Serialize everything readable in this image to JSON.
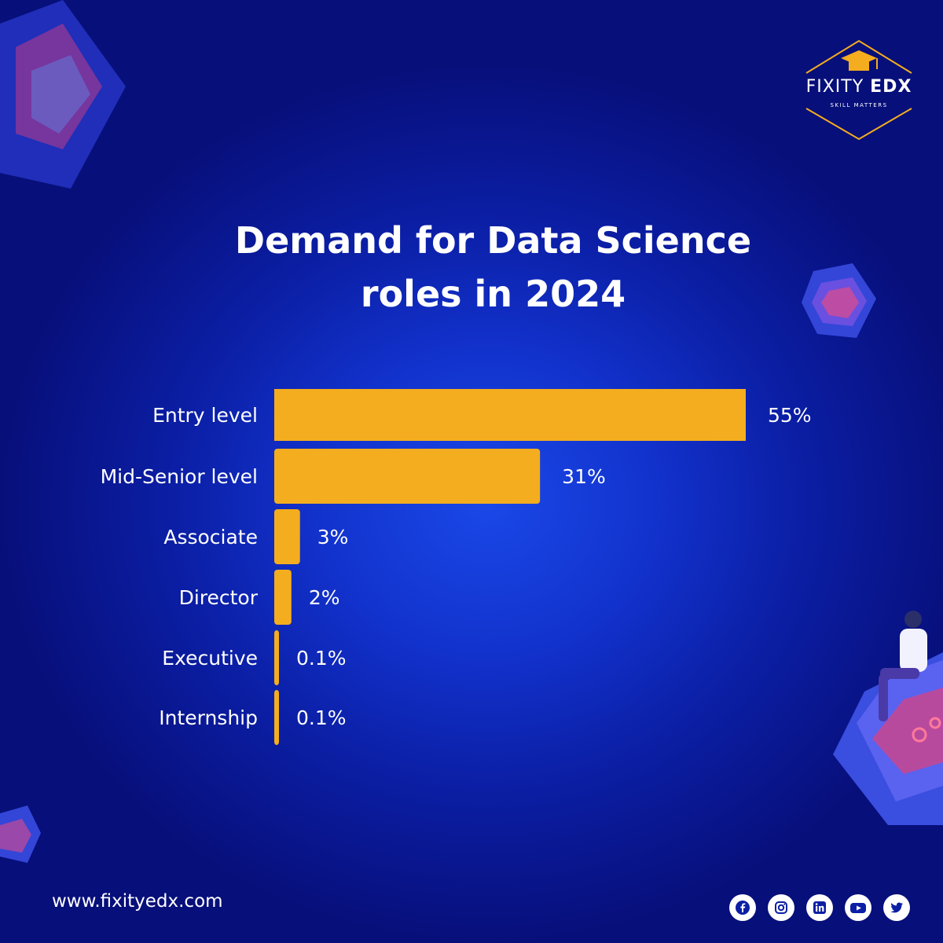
{
  "brand": {
    "name_light": "FIXITY",
    "name_bold": "EDX",
    "tagline": "SKILL MATTERS",
    "accent_color": "#f4ad1f"
  },
  "chart_data": {
    "type": "bar",
    "orientation": "horizontal",
    "title_line1": "Demand for Data Science",
    "title_line2": "roles in 2024",
    "categories": [
      "Entry level",
      "Mid-Senior level",
      "Associate",
      "Director",
      "Executive",
      "Internship"
    ],
    "values": [
      55,
      31,
      3,
      2,
      0.1,
      0.1
    ],
    "value_labels": [
      "55%",
      "31%",
      "3%",
      "2%",
      "0.1%",
      "0.1%"
    ],
    "unit": "%",
    "bar_color": "#f4ad1f",
    "grid": false,
    "legend": "none"
  },
  "footer": {
    "url": "www.fixityedx.com",
    "social_icons": [
      "facebook-icon",
      "instagram-icon",
      "linkedin-icon",
      "youtube-icon",
      "twitter-icon"
    ]
  }
}
